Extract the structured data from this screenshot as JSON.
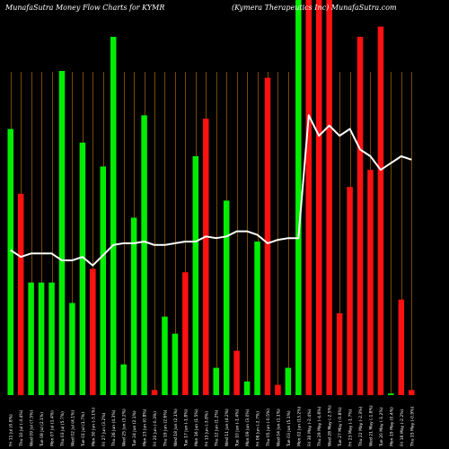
{
  "header": {
    "left_title": "MunafaSutra  Money Flow  Charts for KYMR",
    "right_title": "(Kymera  Therapeutics  Inc)  MunafaSutra.com"
  },
  "chart_data": {
    "type": "bar",
    "title": "MunafaSutra  Money Flow  Charts for KYMR",
    "subtitle": "(Kymera  Therapeutics  Inc)  MunafaSutra.com",
    "xlabel": "",
    "ylabel": "",
    "grid": "vertical",
    "colors": {
      "up": "#00ee00",
      "down": "#ff1111",
      "line": "#ffffff",
      "grid": "#7a4a00",
      "background": "#000000"
    },
    "categories": [
      "Fri 11 Jul (0.8%)",
      "Thu 10 Jul (-4.4%)",
      "Wed 09 Jul (7.5%)",
      "Tue 08 Jul (2.1%)",
      "Mon 07 Jul (1.4%)",
      "Thu 03 Jul (5.7%)",
      "Wed 02 Jul (4.1%)",
      "Tue 01 Jul (1.7%)",
      "Mon 30 Jun (-3.1%)",
      "Fri 27 Jun (3.2%)",
      "Thu 26 Jun (4.3%)",
      "Wed 25 Jun (3.2%)",
      "Tue 24 Jun (2.1%)",
      "Mon 23 Jun (0.8%)",
      "Fri 20 Jun (-0.3%)",
      "Thu 19 Jun (2.6%)",
      "Wed 18 Jun (2.1%)",
      "Tue 17 Jun (-1.8%)",
      "Mon 16 Jun (1.5%)",
      "Fri 13 Jun (-3.8%)",
      "Thu 12 Jun (1.2%)",
      "Wed 11 Jun (4.2%)",
      "Tue 10 Jun (-1.4%)",
      "Mon 09 Jun (3.0%)",
      "Fri 06 Jun (-2.7%)",
      "Thu 05 Jun (-0.5%)",
      "Wed 04 Jun (1.1%)",
      "Tue 03 Jun (5.1%)",
      "Mon 02 Jun (13.2%)",
      "Fri 30 May (-2.4%)",
      "Thu 29 May (-4.6%)",
      "Wed 28 May (-2.5%)",
      "Tue 27 May (-0.8%)",
      "Fri 23 May (-1.7%)",
      "Thu 22 May (-2.3%)",
      "Wed 21 May (-1.8%)",
      "Tue 20 May (-1.2%)",
      "Mon 19 May (0.4%)",
      "Fri 16 May (-2.2%)",
      "Thu 15 May (-0.9%)"
    ],
    "series": [
      {
        "role": "money_flow_bars",
        "values": [
          0.78,
          0.59,
          0.33,
          0.33,
          0.33,
          0.95,
          0.27,
          0.74,
          0.37,
          0.67,
          1.05,
          0.09,
          0.52,
          0.82,
          0.015,
          0.23,
          0.18,
          0.36,
          0.7,
          0.81,
          0.08,
          0.57,
          0.13,
          0.04,
          0.45,
          0.93,
          0.03,
          0.08,
          1.25,
          1.25,
          1.25,
          1.25,
          0.24,
          0.61,
          1.05,
          0.66,
          1.08,
          0.005,
          0.28,
          0.015
        ],
        "colors": [
          "green",
          "red",
          "green",
          "green",
          "green",
          "green",
          "green",
          "green",
          "red",
          "green",
          "green",
          "green",
          "green",
          "green",
          "red",
          "green",
          "green",
          "red",
          "green",
          "red",
          "green",
          "green",
          "red",
          "green",
          "green",
          "red",
          "red",
          "green",
          "green",
          "red",
          "red",
          "red",
          "red",
          "red",
          "red",
          "red",
          "red",
          "green",
          "red",
          "red"
        ]
      },
      {
        "role": "price_line",
        "values": [
          0.425,
          0.405,
          0.415,
          0.415,
          0.415,
          0.395,
          0.395,
          0.405,
          0.38,
          0.41,
          0.44,
          0.445,
          0.445,
          0.45,
          0.44,
          0.44,
          0.445,
          0.45,
          0.45,
          0.465,
          0.46,
          0.465,
          0.48,
          0.48,
          0.47,
          0.445,
          0.455,
          0.46,
          0.46,
          0.82,
          0.76,
          0.79,
          0.76,
          0.78,
          0.72,
          0.7,
          0.66,
          0.68,
          0.7,
          0.69
        ]
      }
    ]
  }
}
